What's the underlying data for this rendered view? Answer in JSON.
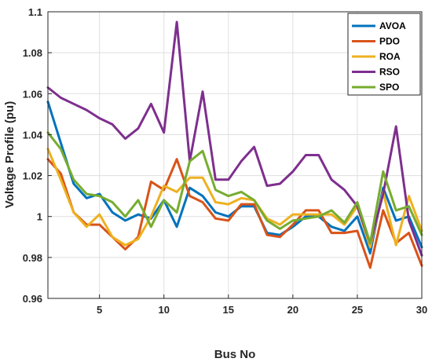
{
  "chart_data": {
    "type": "line",
    "title": "",
    "xlabel": "Bus No",
    "ylabel": "Voltage Profile (pu)",
    "xlim": [
      1,
      30
    ],
    "ylim": [
      0.96,
      1.1
    ],
    "x_ticks": [
      5,
      10,
      15,
      20,
      25,
      30
    ],
    "y_ticks": [
      0.96,
      0.98,
      1,
      1.02,
      1.04,
      1.06,
      1.08,
      1.1
    ],
    "y_tick_labels": [
      "0.96",
      "0.98",
      "1",
      "1.02",
      "1.04",
      "1.06",
      "1.08",
      "1.1"
    ],
    "grid": true,
    "legend_position": "top-right",
    "x": [
      1,
      2,
      3,
      4,
      5,
      6,
      7,
      8,
      9,
      10,
      11,
      12,
      13,
      14,
      15,
      16,
      17,
      18,
      19,
      20,
      21,
      22,
      23,
      24,
      25,
      26,
      27,
      28,
      29,
      30
    ],
    "series": [
      {
        "name": "AVOA",
        "color": "#0072BD",
        "values": [
          1.056,
          1.036,
          1.016,
          1.009,
          1.011,
          1.002,
          0.998,
          1.001,
          0.999,
          1.008,
          0.995,
          1.014,
          1.01,
          1.002,
          1.0,
          1.005,
          1.005,
          0.992,
          0.991,
          0.995,
          1.0,
          1.0,
          0.995,
          0.993,
          1.0,
          0.982,
          1.014,
          0.998,
          1.0,
          0.985
        ]
      },
      {
        "name": "PDO",
        "color": "#D95319",
        "values": [
          1.028,
          1.021,
          1.002,
          0.996,
          0.996,
          0.99,
          0.984,
          0.99,
          1.017,
          1.013,
          1.028,
          1.01,
          1.007,
          0.999,
          0.998,
          1.006,
          1.006,
          0.991,
          0.99,
          0.996,
          1.003,
          1.003,
          0.992,
          0.992,
          0.993,
          0.975,
          1.003,
          0.987,
          0.992,
          0.976
        ]
      },
      {
        "name": "ROA",
        "color": "#EDB120",
        "values": [
          1.033,
          1.018,
          1.002,
          0.995,
          1.001,
          0.99,
          0.986,
          0.989,
          1.0,
          1.015,
          1.012,
          1.019,
          1.019,
          1.007,
          1.006,
          1.009,
          1.008,
          0.999,
          0.996,
          1.001,
          1.001,
          1.001,
          1.001,
          0.996,
          1.005,
          0.985,
          1.012,
          0.986,
          1.01,
          0.993
        ]
      },
      {
        "name": "RSO",
        "color": "#7E2F8E",
        "values": [
          1.063,
          1.058,
          1.055,
          1.052,
          1.048,
          1.045,
          1.038,
          1.043,
          1.055,
          1.041,
          1.095,
          1.027,
          1.061,
          1.018,
          1.018,
          1.027,
          1.034,
          1.015,
          1.016,
          1.022,
          1.03,
          1.03,
          1.018,
          1.013,
          1.005,
          0.987,
          1.011,
          1.044,
          0.998,
          0.981
        ]
      },
      {
        "name": "SPO",
        "color": "#77AC30",
        "values": [
          1.041,
          1.033,
          1.018,
          1.011,
          1.01,
          1.007,
          1.0,
          1.008,
          0.995,
          1.008,
          1.002,
          1.027,
          1.032,
          1.013,
          1.01,
          1.012,
          1.008,
          0.998,
          0.994,
          0.998,
          0.999,
          1.0,
          1.003,
          0.997,
          1.007,
          0.987,
          1.022,
          1.003,
          1.005,
          0.991
        ]
      }
    ]
  }
}
